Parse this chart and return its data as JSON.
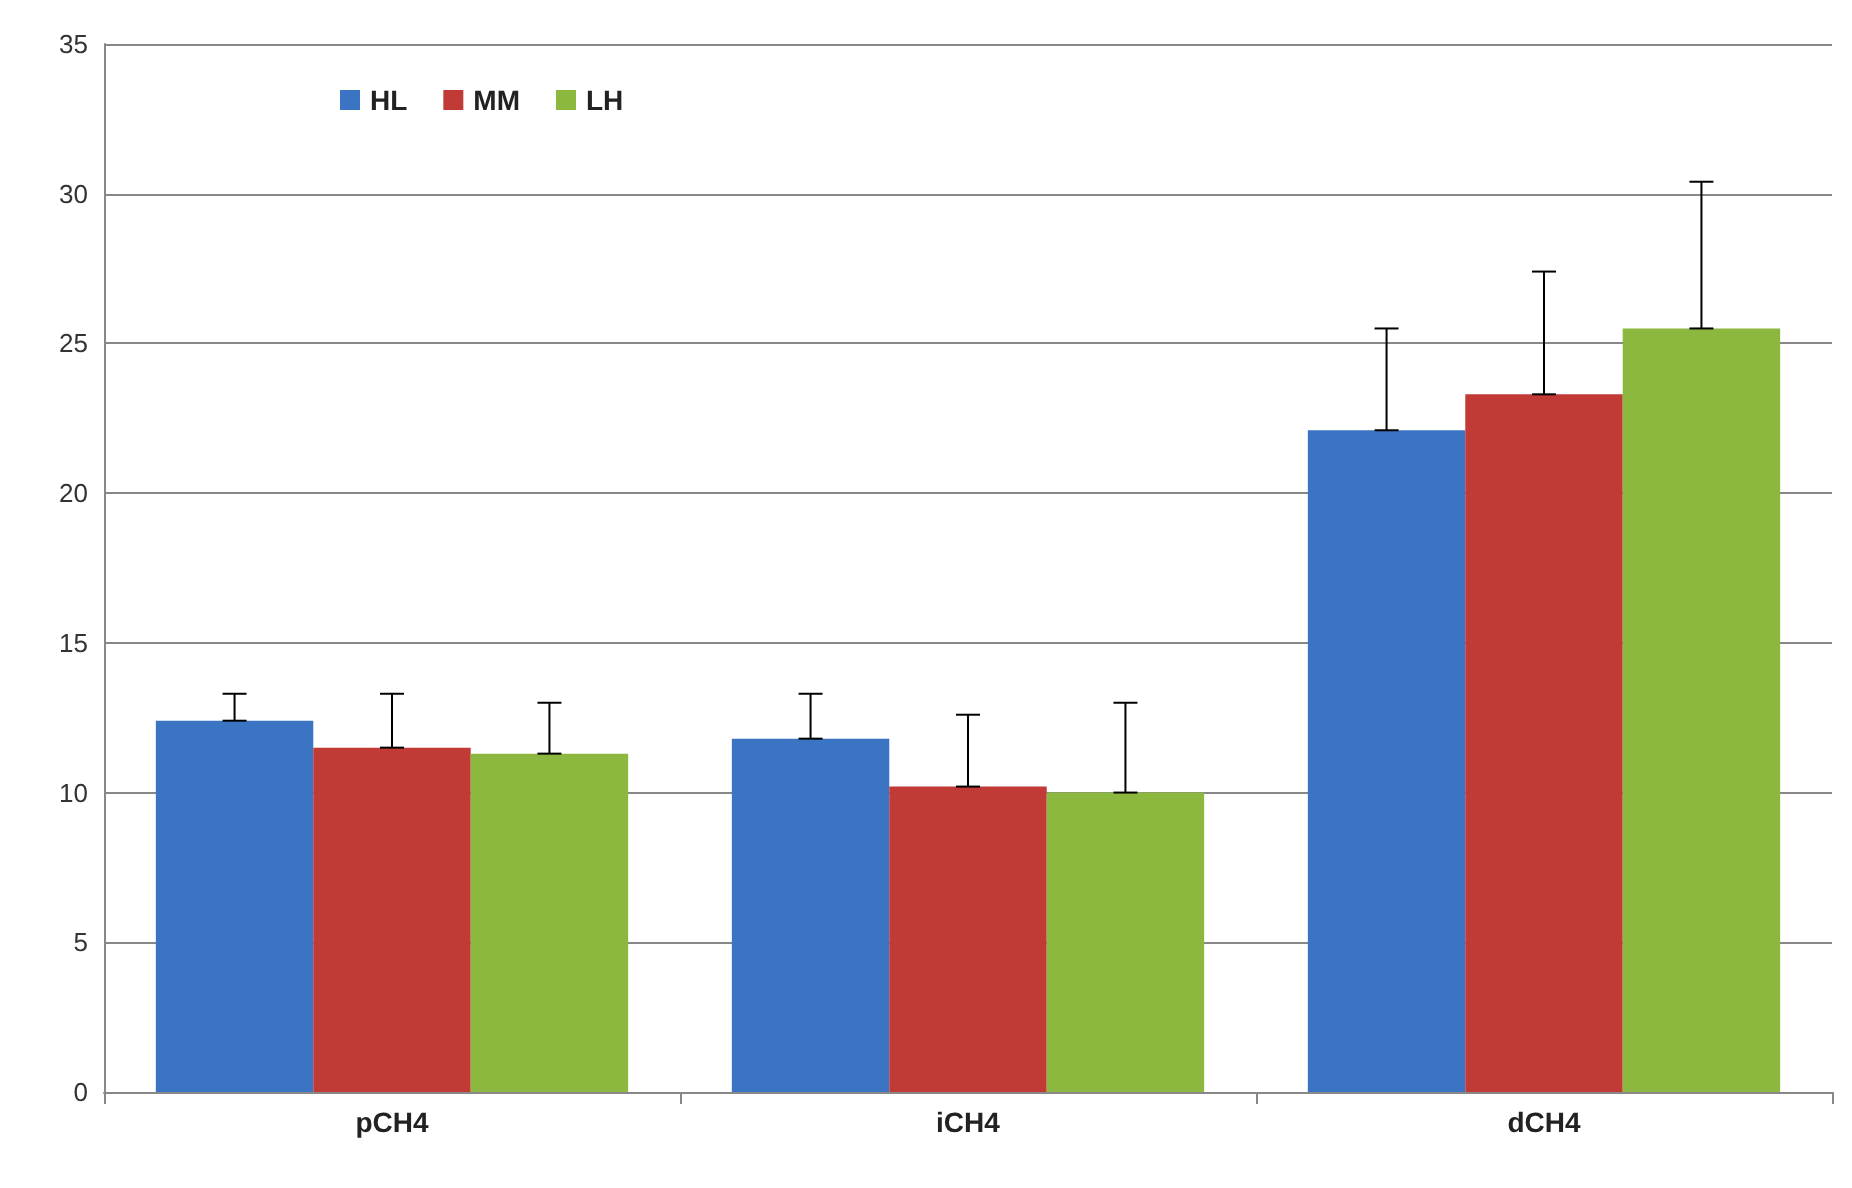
{
  "chart_data": {
    "type": "bar",
    "categories": [
      "pCH4",
      "iCH4",
      "dCH4"
    ],
    "series": [
      {
        "name": "HL",
        "color": "#3b74c3",
        "values": [
          12.4,
          11.8,
          22.1
        ],
        "errors": [
          [
            12.4,
            13.3
          ],
          [
            11.8,
            13.3
          ],
          [
            22.1,
            25.5
          ]
        ]
      },
      {
        "name": "MM",
        "color": "#c23a36",
        "values": [
          11.5,
          10.2,
          23.3
        ],
        "errors": [
          [
            11.5,
            13.3
          ],
          [
            10.2,
            12.6
          ],
          [
            23.3,
            27.4
          ]
        ]
      },
      {
        "name": "LH",
        "color": "#8cb83f",
        "values": [
          11.3,
          10.0,
          25.5
        ],
        "errors": [
          [
            11.3,
            13.0
          ],
          [
            10.0,
            13.0
          ],
          [
            25.5,
            30.4
          ]
        ]
      }
    ],
    "ylim": [
      0,
      35
    ],
    "yticks": [
      0,
      5,
      10,
      15,
      20,
      25,
      30,
      35
    ],
    "grid": "y",
    "legend": "top left"
  }
}
